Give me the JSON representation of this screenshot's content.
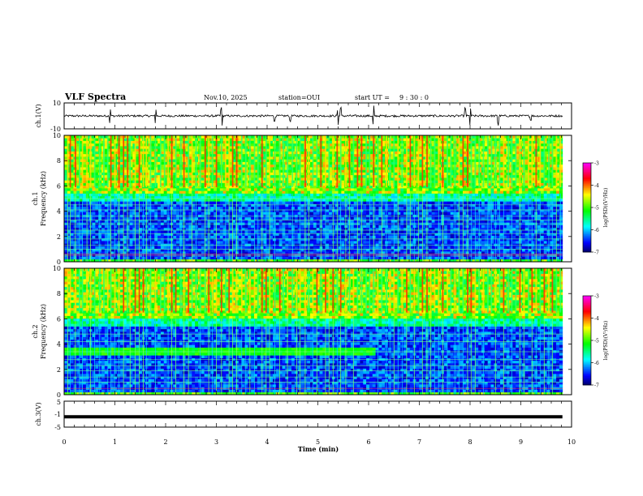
{
  "header": {
    "title": "VLF Spectra",
    "date": "Nov.10, 2025",
    "station": "station=OUI",
    "start_label": "start  UT =",
    "start_time": "9  : 30 : 0"
  },
  "colorbar": {
    "label": "log(PSD)(V²/Hz)",
    "ticks": [
      "-3",
      "-4",
      "-5",
      "-6",
      "-7"
    ],
    "colors": [
      "#ff00ff",
      "#ff0000",
      "#ffff00",
      "#00ff00",
      "#00ffff",
      "#0000ff",
      "#000000"
    ]
  },
  "chart_data": [
    {
      "type": "line",
      "name": "ch1-waveform",
      "ylabel": "ch.1(V)",
      "ylim": [
        -10,
        10
      ],
      "ytick_labels": [
        "10",
        "-10"
      ],
      "xlim": [
        0,
        10
      ],
      "baseline": 0,
      "series": [
        {
          "name": "ch.1",
          "description": "noisy baseline with impulsive spikes",
          "spikes_min": [
            0.9,
            1.8,
            3.1,
            4.15,
            4.45,
            5.4,
            5.45,
            6.1,
            7.9,
            8.0,
            8.55,
            9.2
          ]
        }
      ]
    },
    {
      "type": "heatmap",
      "name": "ch1-spectrogram",
      "ylabel": "ch.1\nFrequency (kHz)",
      "ylabel_top": "ch.1",
      "ylabel_bottom": "Frequency (kHz)",
      "ylim": [
        0,
        10
      ],
      "ytick_labels": [
        "0",
        "2",
        "4",
        "6",
        "8",
        "10"
      ],
      "xlim": [
        0,
        9.82
      ],
      "cutoff_khz": 5.4,
      "sferic_times_min": [
        0.07,
        0.12,
        0.22,
        0.3,
        0.36,
        0.45,
        0.52,
        0.6,
        0.7,
        0.78,
        0.86,
        0.92,
        1.0,
        1.08,
        1.17,
        1.25,
        1.3,
        1.4,
        1.48,
        1.56,
        1.62,
        1.7,
        1.8,
        1.9,
        1.98,
        2.05,
        2.12,
        2.2,
        2.3,
        2.36,
        2.45,
        2.52,
        2.6,
        2.68,
        2.78,
        2.85,
        2.92,
        3.0,
        3.1,
        3.18,
        3.25,
        3.32,
        3.4,
        3.5,
        3.58,
        3.66,
        3.75,
        3.82,
        3.9,
        3.98,
        4.05,
        4.15,
        4.25,
        4.32,
        4.4,
        4.5,
        4.58,
        4.65,
        4.75,
        4.82,
        4.9,
        4.98,
        5.06,
        5.15,
        5.22,
        5.3,
        5.38,
        5.45,
        5.55,
        5.62,
        5.7,
        5.78,
        5.86,
        5.95,
        6.02,
        6.1,
        6.18,
        6.26,
        6.35,
        6.42,
        6.5,
        6.58,
        6.66,
        6.75,
        6.82,
        6.9,
        6.98,
        7.06,
        7.15,
        7.22,
        7.3,
        7.38,
        7.46,
        7.55,
        7.62,
        7.7,
        7.78,
        7.86,
        7.95,
        8.02,
        8.1,
        8.18,
        8.26,
        8.35,
        8.42,
        8.5,
        8.58,
        8.66,
        8.75,
        8.82,
        8.9,
        8.98,
        9.06,
        9.15,
        9.22,
        9.3,
        9.38,
        9.46,
        9.55,
        9.62,
        9.7,
        9.78
      ],
      "tone_lines_khz": [
        0.5,
        0.6,
        1.0,
        1.3,
        1.8,
        2.2,
        2.5,
        3.0,
        3.3,
        3.6,
        4.1,
        4.5,
        5.0
      ]
    },
    {
      "type": "heatmap",
      "name": "ch2-spectrogram",
      "ylabel": "ch.2\nFrequency (kHz)",
      "ylabel_top": "ch.2",
      "ylabel_bottom": "Frequency (kHz)",
      "ylim": [
        0,
        10
      ],
      "ytick_labels": [
        "0",
        "2",
        "4",
        "6",
        "8",
        "10"
      ],
      "xlim": [
        0,
        9.82
      ],
      "cutoff_khz": 6.0,
      "noise_band_khz": [
        3.2,
        3.7
      ],
      "noise_band_end_min": 6.15,
      "sferic_times_min": [
        0.07,
        0.12,
        0.22,
        0.3,
        0.36,
        0.45,
        0.52,
        0.6,
        0.7,
        0.78,
        0.86,
        0.92,
        1.0,
        1.08,
        1.17,
        1.25,
        1.3,
        1.4,
        1.48,
        1.56,
        1.62,
        1.7,
        1.8,
        1.9,
        1.98,
        2.05,
        2.12,
        2.2,
        2.3,
        2.36,
        2.45,
        2.52,
        2.6,
        2.68,
        2.78,
        2.85,
        2.92,
        3.0,
        3.1,
        3.18,
        3.25,
        3.32,
        3.4,
        3.5,
        3.58,
        3.66,
        3.75,
        3.82,
        3.9,
        3.98,
        4.05,
        4.15,
        4.25,
        4.32,
        4.4,
        4.5,
        4.58,
        4.65,
        4.75,
        4.82,
        4.9,
        4.98,
        5.06,
        5.15,
        5.22,
        5.3,
        5.38,
        5.45,
        5.55,
        5.62,
        5.7,
        5.78,
        5.86,
        5.95,
        6.02,
        6.1,
        6.18,
        6.26,
        6.35,
        6.42,
        6.5,
        6.58,
        6.66,
        6.75,
        6.82,
        6.9,
        6.98,
        7.06,
        7.15,
        7.22,
        7.3,
        7.38,
        7.46,
        7.55,
        7.62,
        7.7,
        7.78,
        7.86,
        7.95,
        8.02,
        8.1,
        8.18,
        8.26,
        8.35,
        8.42,
        8.5,
        8.58,
        8.66,
        8.75,
        8.82,
        8.9,
        8.98,
        9.06,
        9.15,
        9.22,
        9.3,
        9.38,
        9.46,
        9.55,
        9.62,
        9.7,
        9.78
      ],
      "tone_lines_khz": [
        0.5,
        1.0,
        1.4,
        1.9,
        2.3,
        2.8,
        3.4,
        4.2,
        4.8
      ]
    },
    {
      "type": "line",
      "name": "ch3-waveform",
      "ylabel": "ch.3(V)",
      "ylim": [
        -5,
        5
      ],
      "ytick_labels": [
        "5",
        "-1",
        "-5"
      ],
      "xlim": [
        0,
        10
      ],
      "series": [
        {
          "name": "ch.3",
          "x": [
            0,
            9.82
          ],
          "y": [
            -1,
            -1
          ]
        }
      ]
    }
  ],
  "xaxis": {
    "label": "Time (min)",
    "min": 0,
    "max": 10,
    "tick_labels": [
      "0",
      "1",
      "2",
      "3",
      "4",
      "5",
      "6",
      "7",
      "8",
      "9",
      "10"
    ]
  }
}
